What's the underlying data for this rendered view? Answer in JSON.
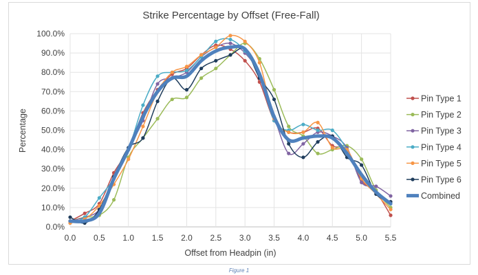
{
  "chart_data": {
    "type": "line",
    "title": "Strike Percentage by Offset (Free-Fall)",
    "xlabel": "Offset from Headpin (in)",
    "ylabel": "Percentage",
    "xlim": [
      0,
      5.5
    ],
    "ylim": [
      0,
      100
    ],
    "x_ticks": [
      "0.0",
      "0.5",
      "1.0",
      "1.5",
      "2.0",
      "2.5",
      "3.0",
      "3.5",
      "4.0",
      "4.5",
      "5.0",
      "5.5"
    ],
    "y_ticks": [
      "0.0%",
      "10.0%",
      "20.0%",
      "30.0%",
      "40.0%",
      "50.0%",
      "60.0%",
      "70.0%",
      "80.0%",
      "90.0%",
      "100.0%"
    ],
    "grid": true,
    "legend_position": "right",
    "x": [
      0,
      0.25,
      0.5,
      0.75,
      1,
      1.25,
      1.5,
      1.75,
      2,
      2.25,
      2.5,
      2.75,
      3,
      3.25,
      3.5,
      3.75,
      4,
      4.25,
      4.5,
      4.75,
      5,
      5.25,
      5.5
    ],
    "series": [
      {
        "name": "Pin Type 1",
        "color": "#c0504d",
        "values": [
          3,
          7,
          12,
          28,
          40,
          59,
          71,
          79,
          82,
          89,
          94,
          92,
          86,
          75,
          55,
          49,
          49,
          51,
          42,
          40,
          24,
          18,
          6
        ]
      },
      {
        "name": "Pin Type 2",
        "color": "#9bbb59",
        "values": [
          3,
          5,
          6,
          14,
          36,
          46,
          56,
          66,
          67,
          77,
          82,
          89,
          95,
          87,
          71,
          52,
          47,
          38,
          40,
          42,
          35,
          19,
          10
        ]
      },
      {
        "name": "Pin Type 3",
        "color": "#8064a2",
        "values": [
          3,
          5,
          9,
          25,
          40,
          55,
          74,
          77,
          80,
          88,
          93,
          95,
          90,
          79,
          57,
          38,
          43,
          49,
          47,
          41,
          23,
          21,
          16
        ]
      },
      {
        "name": "Pin Type 4",
        "color": "#4bacc6",
        "values": [
          2,
          5,
          15,
          25,
          40,
          63,
          78,
          80,
          81,
          88,
          96,
          97,
          91,
          78,
          55,
          50,
          53,
          50,
          50,
          40,
          25,
          18,
          12
        ]
      },
      {
        "name": "Pin Type 5",
        "color": "#f79646",
        "values": [
          2,
          4,
          11,
          22,
          35,
          52,
          70,
          80,
          83,
          89,
          93,
          99,
          96,
          85,
          56,
          49,
          49,
          54,
          41,
          40,
          25,
          17,
          9
        ]
      },
      {
        "name": "Pin Type 6",
        "color": "#1f3d5c",
        "values": [
          5,
          2,
          9,
          26,
          41,
          46,
          65,
          77,
          71,
          82,
          86,
          89,
          92,
          77,
          66,
          43,
          36,
          44,
          47,
          36,
          32,
          17,
          13
        ]
      },
      {
        "name": "Combined",
        "color": "#4f81bd",
        "values": [
          3,
          3,
          7,
          25,
          40,
          57,
          70,
          77,
          78,
          86,
          91,
          93,
          92,
          79,
          57,
          45,
          46,
          47,
          46,
          38,
          27,
          18,
          12
        ]
      }
    ]
  },
  "caption": "Figure 1"
}
